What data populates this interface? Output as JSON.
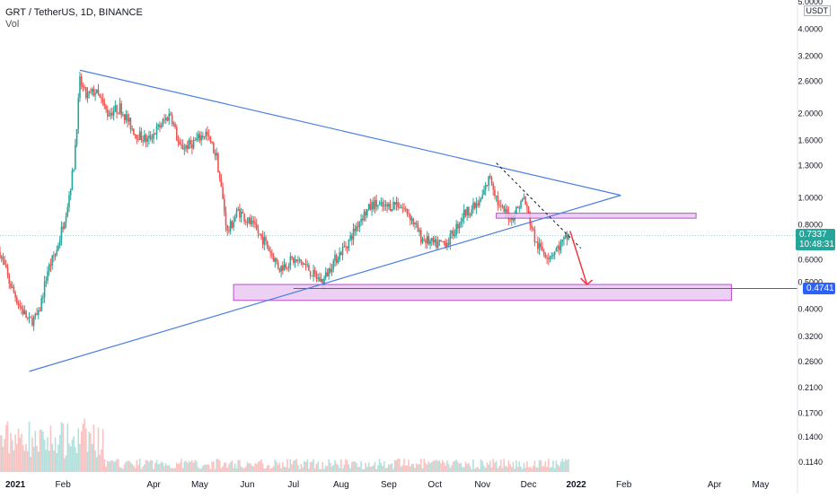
{
  "header": {
    "symbol_line": "GRT / TetherUS, 1D, BINANCE",
    "volume_label": "Vol"
  },
  "currency_badge": "USDT",
  "price_labels": {
    "current_price": "0.7337",
    "countdown": "10:48:31",
    "marked_level": "0.4741"
  },
  "colors": {
    "up": "#26a69a",
    "down": "#ef5350",
    "trendline": "#4a7fe0",
    "zone_fill": "#e9c9f3",
    "zone_stroke": "#b12fc7",
    "arrow": "#f23645",
    "current_price_bg": "#26a69a",
    "marked_level_bg": "#2962ff"
  },
  "chart_data": {
    "type": "candlestick",
    "y_scale": "log",
    "ylim": [
      0.105,
      5.0
    ],
    "y_ticks": [
      "5.0000",
      "4.0000",
      "3.2000",
      "2.6000",
      "2.0000",
      "1.6000",
      "1.3000",
      "1.0000",
      "0.8000",
      "0.6000",
      "0.5000",
      "0.4000",
      "0.3200",
      "0.2600",
      "0.2100",
      "0.1700",
      "0.1400",
      "0.1140"
    ],
    "x_ticks": [
      "2021",
      "Feb",
      "Apr",
      "May",
      "Jun",
      "Jul",
      "Aug",
      "Sep",
      "Oct",
      "Nov",
      "Dec",
      "2022",
      "Feb",
      "Apr",
      "May"
    ],
    "xlim": [
      "2020-12-22",
      "2022-05-25"
    ],
    "close_path": [
      [
        "2020-12-22",
        0.64
      ],
      [
        "2020-12-28",
        0.5
      ],
      [
        "2021-01-03",
        0.42
      ],
      [
        "2021-01-10",
        0.36
      ],
      [
        "2021-01-16",
        0.38
      ],
      [
        "2021-01-22",
        0.55
      ],
      [
        "2021-01-28",
        0.65
      ],
      [
        "2021-02-04",
        0.95
      ],
      [
        "2021-02-08",
        1.3
      ],
      [
        "2021-02-12",
        2.6
      ],
      [
        "2021-02-16",
        2.3
      ],
      [
        "2021-02-22",
        2.4
      ],
      [
        "2021-03-02",
        2.0
      ],
      [
        "2021-03-10",
        2.1
      ],
      [
        "2021-03-20",
        1.7
      ],
      [
        "2021-03-28",
        1.6
      ],
      [
        "2021-04-05",
        1.8
      ],
      [
        "2021-04-12",
        2.0
      ],
      [
        "2021-04-18",
        1.5
      ],
      [
        "2021-04-25",
        1.55
      ],
      [
        "2021-05-05",
        1.7
      ],
      [
        "2021-05-12",
        1.4
      ],
      [
        "2021-05-19",
        0.75
      ],
      [
        "2021-05-26",
        0.9
      ],
      [
        "2021-06-04",
        0.8
      ],
      [
        "2021-06-12",
        0.7
      ],
      [
        "2021-06-22",
        0.56
      ],
      [
        "2021-06-30",
        0.6
      ],
      [
        "2021-07-08",
        0.58
      ],
      [
        "2021-07-14",
        0.53
      ],
      [
        "2021-07-20",
        0.5
      ],
      [
        "2021-07-26",
        0.58
      ],
      [
        "2021-08-06",
        0.7
      ],
      [
        "2021-08-14",
        0.85
      ],
      [
        "2021-08-22",
        0.95
      ],
      [
        "2021-08-30",
        0.92
      ],
      [
        "2021-09-06",
        0.96
      ],
      [
        "2021-09-14",
        0.88
      ],
      [
        "2021-09-22",
        0.72
      ],
      [
        "2021-10-01",
        0.68
      ],
      [
        "2021-10-10",
        0.7
      ],
      [
        "2021-10-20",
        0.88
      ],
      [
        "2021-10-30",
        0.95
      ],
      [
        "2021-11-06",
        1.2
      ],
      [
        "2021-11-12",
        0.92
      ],
      [
        "2021-11-20",
        0.85
      ],
      [
        "2021-11-28",
        1.0
      ],
      [
        "2021-12-02",
        0.82
      ],
      [
        "2021-12-06",
        0.68
      ],
      [
        "2021-12-14",
        0.62
      ],
      [
        "2021-12-20",
        0.66
      ],
      [
        "2021-12-27",
        0.7337
      ]
    ],
    "annotations": {
      "triangle_upper": [
        [
          "2021-02-12",
          2.85
        ],
        [
          "2022-01-30",
          1.02
        ]
      ],
      "triangle_lower": [
        [
          "2021-01-10",
          0.24
        ],
        [
          "2022-01-30",
          1.02
        ]
      ],
      "descending_dashed": [
        [
          "2021-11-10",
          1.33
        ],
        [
          "2022-01-04",
          0.66
        ]
      ],
      "resistance_zone": {
        "x": [
          "2021-11-10",
          "2022-03-20"
        ],
        "y": [
          0.845,
          0.88
        ]
      },
      "support_zone": {
        "x": [
          "2021-05-23",
          "2022-04-12"
        ],
        "y": [
          0.43,
          0.49
        ]
      },
      "support_level": 0.4741,
      "projection_arrow": [
        [
          "2021-12-28",
          0.76
        ],
        [
          "2022-01-08",
          0.49
        ]
      ]
    },
    "volume_panel": true,
    "grid": false
  }
}
